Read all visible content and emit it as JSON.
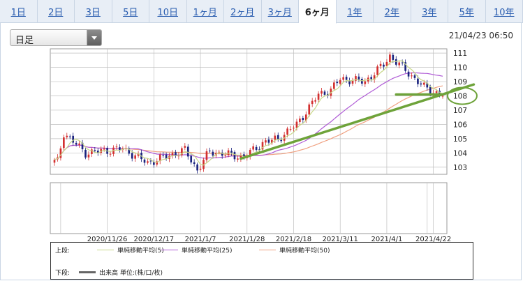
{
  "tabs": [
    {
      "label": "1日",
      "active": false
    },
    {
      "label": "2日",
      "active": false
    },
    {
      "label": "3日",
      "active": false
    },
    {
      "label": "5日",
      "active": false
    },
    {
      "label": "10日",
      "active": false
    },
    {
      "label": "1ヶ月",
      "active": false
    },
    {
      "label": "2ヶ月",
      "active": false
    },
    {
      "label": "3ヶ月",
      "active": false
    },
    {
      "label": "6ヶ月",
      "active": true
    },
    {
      "label": "1年",
      "active": false
    },
    {
      "label": "2年",
      "active": false
    },
    {
      "label": "3年",
      "active": false
    },
    {
      "label": "5年",
      "active": false
    },
    {
      "label": "10年",
      "active": false
    }
  ],
  "period_select": {
    "value": "日足"
  },
  "timestamp": "21/04/23 06:50",
  "legend": {
    "upper_label": "上段:",
    "lower_label": "下段:",
    "ma5": "単純移動平均(5)",
    "ma25": "単純移動平均(25)",
    "ma50": "単純移動平均(50)",
    "volume": "出来高 単位:(株/口/枚)"
  },
  "colors": {
    "up": "#d32f2f",
    "down": "#1a237e",
    "ma5": "#c8d88a",
    "ma25": "#b05cd6",
    "ma50": "#f0a080",
    "trend": "#6ea33a",
    "grid": "#bfbfbf"
  },
  "chart_data": {
    "type": "candlestick",
    "title": "",
    "y_ticks": [
      103,
      104,
      105,
      106,
      107,
      108,
      109,
      110,
      111
    ],
    "ylim": [
      102.5,
      111.3
    ],
    "x_tick_labels": [
      "2020/11/26",
      "2020/12/17",
      "2021/1/7",
      "2021/1/28",
      "2021/2/18",
      "2021/3/11",
      "2021/4/1",
      "2021/4/22"
    ],
    "x_tick_indices": [
      17,
      32,
      47,
      62,
      77,
      92,
      107,
      122
    ],
    "n_days": 126,
    "key_prices": [
      {
        "day": 1,
        "value": 103.4
      },
      {
        "day": 3,
        "value": 105.4
      },
      {
        "day": 10,
        "value": 104.0
      },
      {
        "day": 22,
        "value": 104.3
      },
      {
        "day": 30,
        "value": 103.3
      },
      {
        "day": 42,
        "value": 104.2
      },
      {
        "day": 46,
        "value": 102.8
      },
      {
        "day": 50,
        "value": 104.1
      },
      {
        "day": 61,
        "value": 103.7
      },
      {
        "day": 67,
        "value": 104.7
      },
      {
        "day": 72,
        "value": 105.0
      },
      {
        "day": 78,
        "value": 106.0
      },
      {
        "day": 85,
        "value": 108.1
      },
      {
        "day": 89,
        "value": 108.4
      },
      {
        "day": 92,
        "value": 109.2
      },
      {
        "day": 100,
        "value": 109.0
      },
      {
        "day": 106,
        "value": 110.2
      },
      {
        "day": 108,
        "value": 110.8
      },
      {
        "day": 114,
        "value": 109.6
      },
      {
        "day": 119,
        "value": 108.6
      },
      {
        "day": 124,
        "value": 108.1
      }
    ],
    "trendlines": [
      {
        "x1": 60,
        "y1": 103.6,
        "x2": 135,
        "y2": 108.8
      },
      {
        "x1": 110,
        "y1": 108.1,
        "x2": 125,
        "y2": 108.1
      }
    ],
    "highlight_value": 108
  }
}
